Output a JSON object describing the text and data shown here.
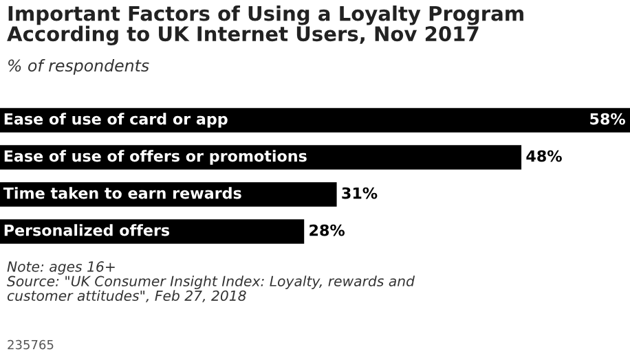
{
  "chart_data": {
    "type": "bar",
    "orientation": "horizontal",
    "title": "Important Factors of Using a Loyalty Program\nAccording to UK Internet Users, Nov 2017",
    "subtitle": "% of respondents",
    "categories": [
      "Ease of use of card or app",
      "Ease of use of offers or promotions",
      "Time taken to earn rewards",
      "Personalized offers"
    ],
    "values": [
      58,
      48,
      31,
      28
    ],
    "color": "#000000",
    "xlim": [
      0,
      58
    ],
    "data_labels": true,
    "value_labels": [
      "58%",
      "48%",
      "31%",
      "28%"
    ],
    "annotations": [
      "Note: ages 16+\nSource: \"UK Consumer Insight Index: Loyalty, rewards and\ncustomer attitudes\", Feb 27, 2018",
      "235765"
    ]
  }
}
